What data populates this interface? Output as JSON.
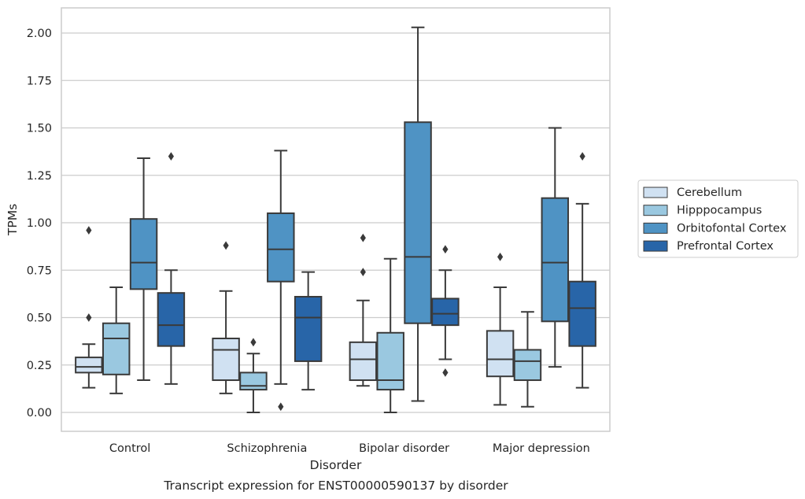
{
  "chart_data": {
    "type": "box",
    "xlabel": "Disorder",
    "ylabel": "TPMs",
    "caption": "Transcript expression for ENST00000590137 by disorder",
    "ylim": [
      -0.1,
      2.13
    ],
    "yticks": [
      "0.00",
      "0.25",
      "0.50",
      "0.75",
      "1.00",
      "1.25",
      "1.50",
      "1.75",
      "2.00"
    ],
    "grid": true,
    "legend_position": "right",
    "categories": [
      "Control",
      "Schizophrenia",
      "Bipolar disorder",
      "Major depression"
    ],
    "series": [
      {
        "name": "Cerebellum",
        "color": "#d0e1f2",
        "boxes": [
          {
            "whisker_low": 0.13,
            "q1": 0.21,
            "median": 0.24,
            "q3": 0.29,
            "whisker_high": 0.36,
            "outliers": [
              0.5,
              0.96
            ]
          },
          {
            "whisker_low": 0.1,
            "q1": 0.17,
            "median": 0.33,
            "q3": 0.39,
            "whisker_high": 0.64,
            "outliers": [
              0.88
            ]
          },
          {
            "whisker_low": 0.14,
            "q1": 0.17,
            "median": 0.28,
            "q3": 0.37,
            "whisker_high": 0.59,
            "outliers": [
              0.74,
              0.92
            ]
          },
          {
            "whisker_low": 0.04,
            "q1": 0.19,
            "median": 0.28,
            "q3": 0.43,
            "whisker_high": 0.66,
            "outliers": [
              0.82
            ]
          }
        ]
      },
      {
        "name": "Hipppocampus",
        "color": "#9ac8e0",
        "boxes": [
          {
            "whisker_low": 0.1,
            "q1": 0.2,
            "median": 0.39,
            "q3": 0.47,
            "whisker_high": 0.66,
            "outliers": []
          },
          {
            "whisker_low": 0.0,
            "q1": 0.12,
            "median": 0.14,
            "q3": 0.21,
            "whisker_high": 0.31,
            "outliers": [
              0.37
            ]
          },
          {
            "whisker_low": 0.0,
            "q1": 0.12,
            "median": 0.17,
            "q3": 0.42,
            "whisker_high": 0.81,
            "outliers": []
          },
          {
            "whisker_low": 0.03,
            "q1": 0.17,
            "median": 0.27,
            "q3": 0.33,
            "whisker_high": 0.53,
            "outliers": []
          }
        ]
      },
      {
        "name": "Orbitofontal Cortex",
        "color": "#4f93c4",
        "boxes": [
          {
            "whisker_low": 0.17,
            "q1": 0.65,
            "median": 0.79,
            "q3": 1.02,
            "whisker_high": 1.34,
            "outliers": []
          },
          {
            "whisker_low": 0.15,
            "q1": 0.69,
            "median": 0.86,
            "q3": 1.05,
            "whisker_high": 1.38,
            "outliers": [
              0.03
            ]
          },
          {
            "whisker_low": 0.06,
            "q1": 0.47,
            "median": 0.82,
            "q3": 1.53,
            "whisker_high": 2.03,
            "outliers": []
          },
          {
            "whisker_low": 0.24,
            "q1": 0.48,
            "median": 0.79,
            "q3": 1.13,
            "whisker_high": 1.5,
            "outliers": []
          }
        ]
      },
      {
        "name": "Prefrontal Cortex",
        "color": "#2865a8",
        "boxes": [
          {
            "whisker_low": 0.15,
            "q1": 0.35,
            "median": 0.46,
            "q3": 0.63,
            "whisker_high": 0.75,
            "outliers": [
              1.35
            ]
          },
          {
            "whisker_low": 0.12,
            "q1": 0.27,
            "median": 0.5,
            "q3": 0.61,
            "whisker_high": 0.74,
            "outliers": []
          },
          {
            "whisker_low": 0.28,
            "q1": 0.46,
            "median": 0.52,
            "q3": 0.6,
            "whisker_high": 0.75,
            "outliers": [
              0.21,
              0.86
            ]
          },
          {
            "whisker_low": 0.13,
            "q1": 0.35,
            "median": 0.55,
            "q3": 0.69,
            "whisker_high": 1.1,
            "outliers": [
              1.35
            ]
          }
        ]
      }
    ]
  }
}
